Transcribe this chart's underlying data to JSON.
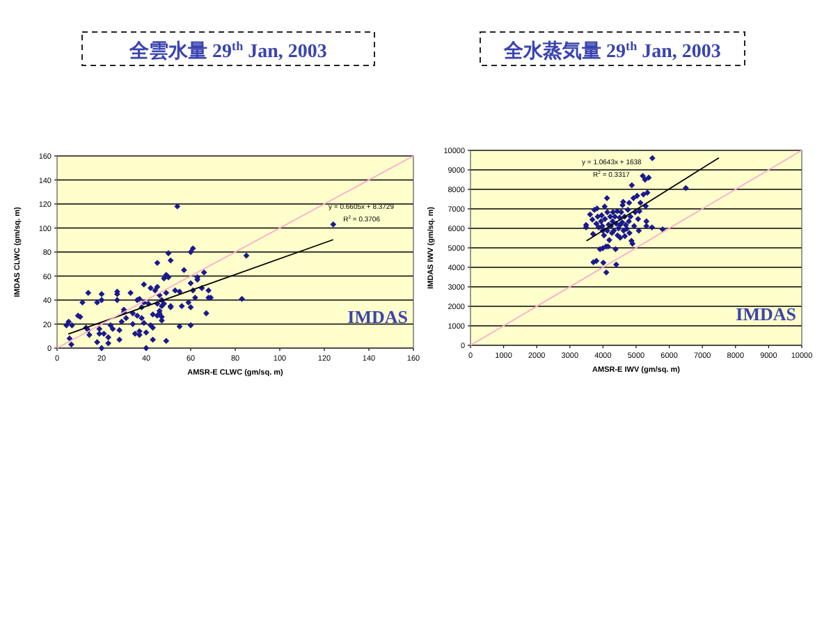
{
  "chart_data": [
    {
      "type": "scatter",
      "title": "全雲水量 29$^{th}$ Jan, 2003",
      "xlabel": "AMSR-E CLWC (gm/sq. m)",
      "ylabel": "IMDAS CLWC (gm/sq. m)",
      "xlim": [
        0,
        160
      ],
      "ylim": [
        0,
        160
      ],
      "xticks": [
        0,
        20,
        40,
        60,
        80,
        100,
        120,
        140,
        160
      ],
      "yticks": [
        0,
        20,
        40,
        60,
        80,
        100,
        120,
        140,
        160
      ],
      "grid": "y",
      "annotations": [
        "y = 0.6605x + 8.3729",
        "R$^{2}$ = 0.3706",
        "IMDAS"
      ],
      "series": [
        {
          "marker": "diamond",
          "color": "#1a1a8c",
          "x": [
            4.2,
            5.2,
            5.6,
            6.4,
            6.7,
            9.4,
            10.4,
            11.4,
            13,
            14,
            14,
            14.5,
            18,
            18,
            19,
            19,
            20,
            20,
            20,
            21,
            23,
            23,
            24,
            25,
            27,
            27,
            27,
            28,
            28,
            29,
            30,
            30,
            31,
            33,
            34,
            34,
            35,
            36,
            36,
            37,
            37,
            37,
            38,
            38,
            39,
            39,
            39,
            40,
            40,
            41,
            42,
            42,
            43,
            43,
            43,
            44,
            45,
            45,
            45,
            45,
            46,
            46,
            46,
            47,
            47,
            47,
            47,
            48,
            48,
            49,
            49,
            49,
            50,
            50,
            51,
            51,
            51,
            53,
            54,
            55,
            55,
            56,
            57,
            59,
            60,
            60,
            60,
            60,
            61,
            61,
            62,
            63,
            63,
            65,
            66,
            67,
            68,
            68,
            69,
            83,
            85,
            124
          ],
          "values": [
            19,
            22,
            8,
            3,
            19,
            27,
            26,
            38,
            17,
            15,
            46,
            11,
            38,
            5,
            16,
            12,
            40,
            45,
            0,
            12,
            4,
            9,
            19,
            16,
            40,
            45,
            47,
            15,
            7,
            22,
            30,
            32,
            25,
            46,
            29,
            20,
            12,
            27,
            40,
            14,
            11,
            41,
            34,
            25,
            38,
            21,
            53,
            13,
            0,
            37,
            19,
            50,
            28,
            17,
            7,
            48,
            37,
            71,
            51,
            27,
            44,
            31,
            29,
            40,
            26,
            35,
            23,
            37,
            58,
            46,
            6,
            61,
            59,
            79,
            73,
            35,
            34,
            48,
            118,
            18,
            47,
            35,
            65,
            38,
            54,
            80,
            34,
            19,
            83,
            48,
            42,
            59,
            57,
            50,
            63,
            29,
            48,
            42,
            42,
            41,
            77,
            103
          ]
        },
        {
          "type": "line",
          "marker": "none",
          "color": "#000000",
          "x": [
            5,
            124
          ],
          "values": [
            11.7,
            90.3
          ]
        },
        {
          "type": "line",
          "marker": "none",
          "color": "#ffaacc",
          "x": [
            0,
            160
          ],
          "values": [
            0,
            160
          ]
        }
      ]
    },
    {
      "type": "scatter",
      "title": "全水蒸気量 29$^{th}$ Jan, 2003",
      "xlabel": "AMSR-E IWV (gm/sq. m)",
      "ylabel": "IMDAS IWV (gm/sq. m)",
      "xlim": [
        0,
        10000
      ],
      "ylim": [
        0,
        10000
      ],
      "xticks": [
        0,
        1000,
        2000,
        3000,
        4000,
        5000,
        6000,
        7000,
        8000,
        9000,
        10000
      ],
      "yticks": [
        0,
        1000,
        2000,
        3000,
        4000,
        5000,
        6000,
        7000,
        8000,
        9000,
        10000
      ],
      "grid": "y",
      "annotations": [
        "y = 1.0643x + 1638",
        "R$^{2}$ = 0.3317",
        "IMDAS"
      ],
      "series": [
        {
          "marker": "diamond",
          "color": "#1a1a8c",
          "x": [
            3490,
            3490,
            3610,
            3680,
            3700,
            3710,
            3740,
            3800,
            3800,
            3820,
            3840,
            3870,
            3910,
            3940,
            3960,
            3980,
            3990,
            3990,
            4010,
            4030,
            4050,
            4060,
            4090,
            4100,
            4120,
            4130,
            4130,
            4150,
            4170,
            4190,
            4220,
            4240,
            4270,
            4290,
            4300,
            4330,
            4360,
            4380,
            4400,
            4400,
            4430,
            4440,
            4470,
            4500,
            4510,
            4520,
            4550,
            4580,
            4590,
            4610,
            4620,
            4650,
            4660,
            4690,
            4720,
            4750,
            4780,
            4790,
            4800,
            4830,
            4860,
            4870,
            4890,
            4920,
            4940,
            4970,
            5030,
            5060,
            5080,
            5100,
            5130,
            5200,
            5220,
            5270,
            5290,
            5310,
            5310,
            5340,
            5380,
            5480,
            5490,
            5800,
            6500
          ],
          "values": [
            6050,
            6170,
            6710,
            6450,
            5710,
            4260,
            6950,
            4330,
            6240,
            7020,
            6600,
            6050,
            4930,
            6360,
            6670,
            6120,
            5880,
            4980,
            4240,
            5640,
            7120,
            6480,
            5070,
            3740,
            7550,
            6830,
            5880,
            5070,
            6190,
            5400,
            6600,
            6120,
            5760,
            6360,
            6830,
            5880,
            6600,
            4930,
            4140,
            6240,
            6880,
            5640,
            6000,
            6550,
            6170,
            5520,
            6830,
            6310,
            7190,
            7360,
            5880,
            6600,
            5600,
            6170,
            5980,
            6950,
            6360,
            7310,
            5760,
            6600,
            5360,
            8210,
            5210,
            7550,
            6120,
            6830,
            7670,
            6480,
            5880,
            6880,
            7310,
            8690,
            7740,
            8500,
            7140,
            6360,
            6120,
            7830,
            8600,
            6050,
            9600,
            5950,
            8070
          ]
        },
        {
          "type": "line",
          "marker": "none",
          "color": "#000000",
          "x": [
            3500,
            7500
          ],
          "values": [
            5360,
            9620
          ]
        },
        {
          "type": "line",
          "marker": "none",
          "color": "#ffaacc",
          "x": [
            0,
            10000
          ],
          "values": [
            0,
            10000
          ]
        }
      ]
    }
  ]
}
